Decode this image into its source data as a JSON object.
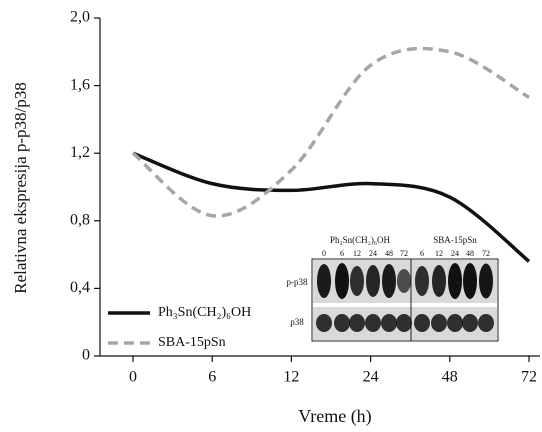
{
  "chart_data": {
    "type": "line",
    "y_label": "Relativna ekspresija p-p38/p38",
    "x_label": "Vreme (h)",
    "categories": [
      "0",
      "6",
      "12",
      "24",
      "48",
      "72"
    ],
    "series": [
      {
        "name": "Ph₃Sn(CH₂)₆OH",
        "color": "#111111",
        "dashed": false,
        "values": [
          1.2,
          1.02,
          0.98,
          1.02,
          0.94,
          0.56
        ]
      },
      {
        "name": "SBA-15pSn",
        "color": "#a6a6a6",
        "dashed": true,
        "values": [
          1.2,
          0.83,
          1.1,
          1.72,
          1.8,
          1.53
        ]
      }
    ],
    "ylim": [
      0,
      2.0
    ],
    "yticks": [
      0,
      {
        "value": 0.4,
        "label": "0,4"
      },
      {
        "value": 0.8,
        "label": "0,8"
      },
      {
        "value": 1.2,
        "label": "1,2"
      },
      {
        "value": 1.6,
        "label": "1,6"
      },
      {
        "value": 2.0,
        "label": "2,0"
      }
    ],
    "smooth": true,
    "legend": "lower left",
    "inset": {
      "groups": [
        "Ph₃Sn(CH₂)₆OH",
        "SBA-15pSn"
      ],
      "lanes": [
        [
          "0",
          "6",
          "12",
          "24",
          "48",
          "72"
        ],
        [
          "6",
          "12",
          "24",
          "48",
          "72"
        ]
      ],
      "rows": [
        "p-p38",
        "p38"
      ]
    }
  }
}
